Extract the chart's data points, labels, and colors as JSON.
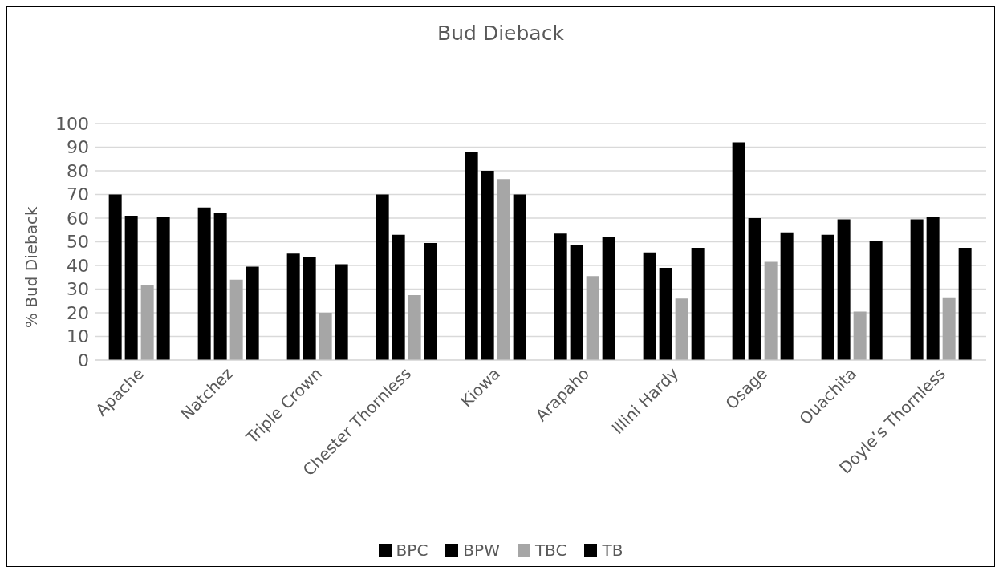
{
  "chart_data": {
    "type": "bar",
    "title": "Bud Dieback",
    "ylabel": "% Bud Dieback",
    "categories": [
      "Apache",
      "Natchez",
      "Triple Crown",
      "Chester Thornless",
      "Kiowa",
      "Arapaho",
      "Illini Hardy",
      "Osage",
      "Ouachita",
      "Doyle’s Thornless"
    ],
    "series": [
      {
        "name": "BPC",
        "color": "#000000",
        "values": [
          70,
          64.5,
          45,
          70,
          88,
          53.5,
          45.5,
          92,
          53,
          59.5
        ]
      },
      {
        "name": "BPW",
        "color": "#000000",
        "values": [
          61,
          62,
          43.5,
          53,
          80,
          48.5,
          39,
          60,
          59.5,
          60.5
        ]
      },
      {
        "name": "TBC",
        "color": "#a6a6a6",
        "values": [
          31.5,
          34,
          20,
          27.5,
          76.5,
          35.5,
          26,
          41.5,
          20.5,
          26.5
        ]
      },
      {
        "name": "TB",
        "color": "#000000",
        "values": [
          60.5,
          39.5,
          40.5,
          49.5,
          70,
          52,
          47.5,
          54,
          50.5,
          47.5
        ]
      }
    ],
    "ylim": [
      0,
      100
    ],
    "yticks": [
      0,
      10,
      20,
      30,
      40,
      50,
      60,
      70,
      80,
      90,
      100
    ],
    "grid": "y",
    "legend": "bottom"
  }
}
